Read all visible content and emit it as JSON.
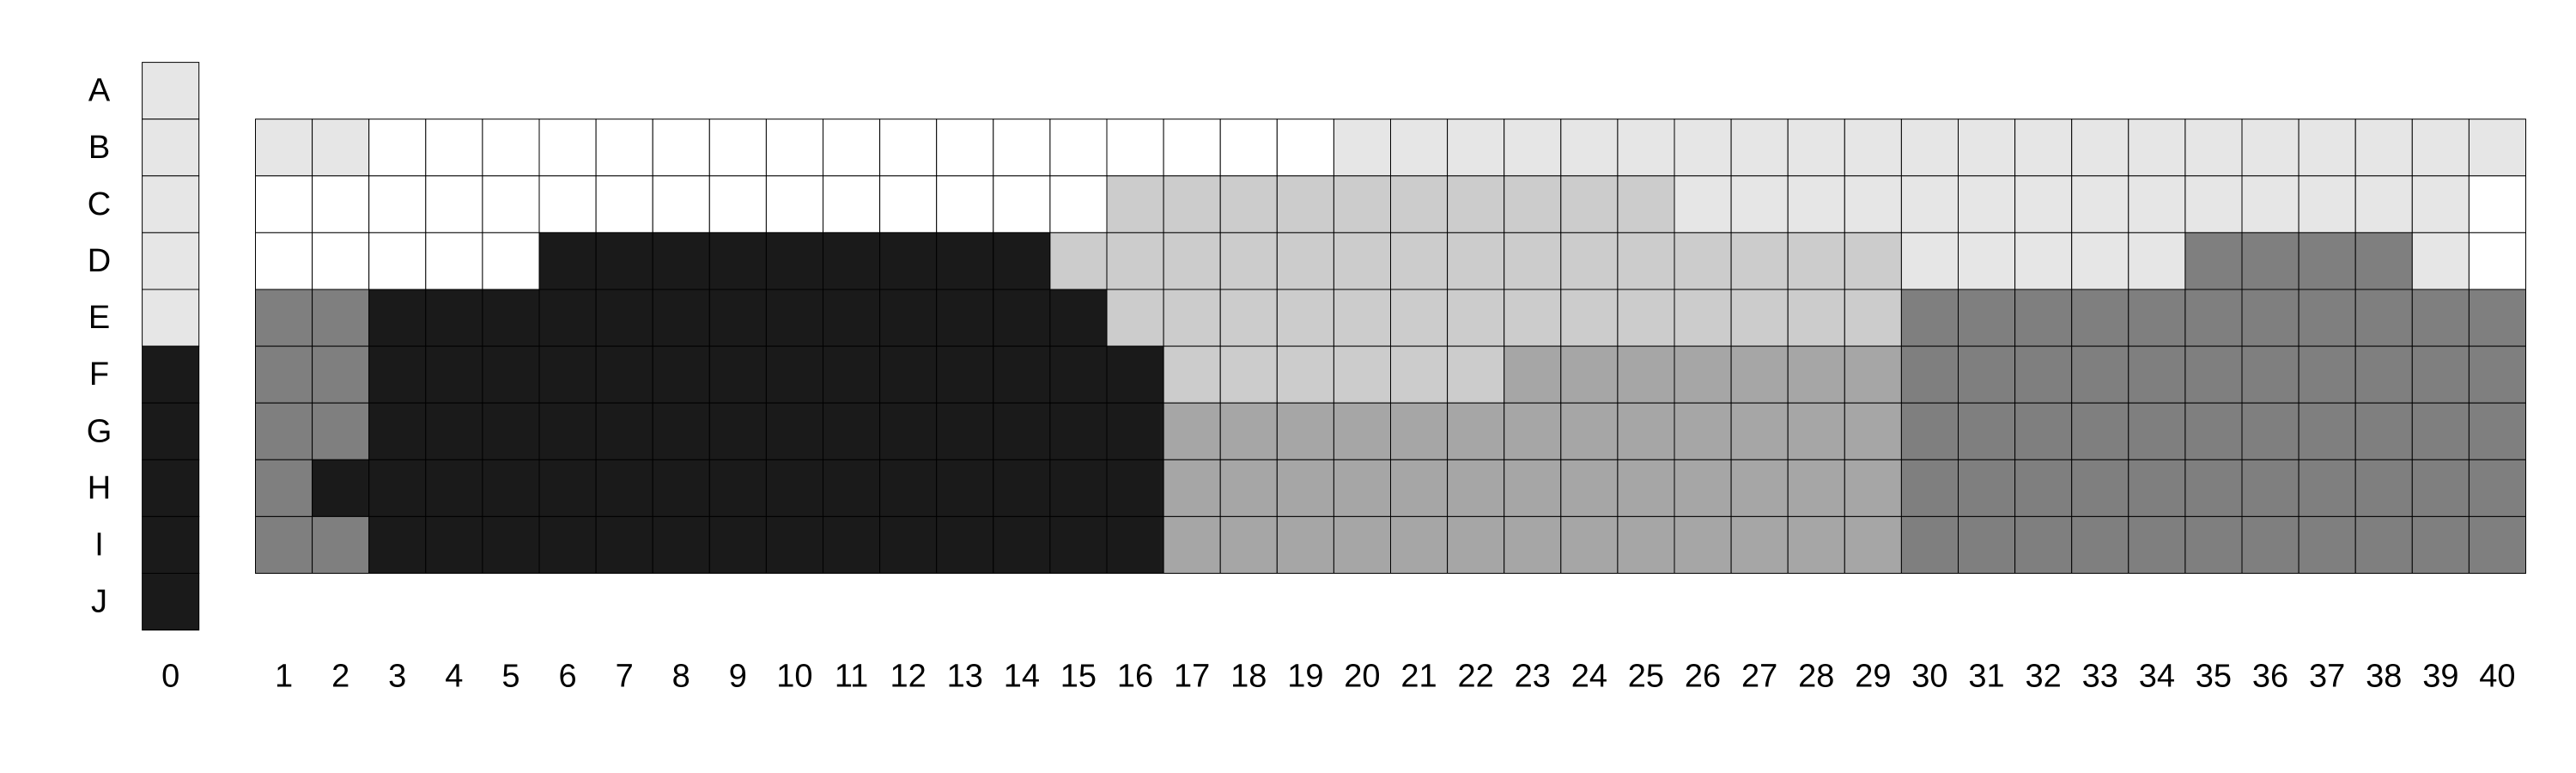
{
  "chart_data": {
    "type": "heatmap",
    "title": "",
    "xlabel": "",
    "ylabel": "",
    "rows": [
      "A",
      "B",
      "C",
      "D",
      "E",
      "F",
      "G",
      "H",
      "I",
      "J"
    ],
    "columns": [
      "0",
      "1",
      "2",
      "3",
      "4",
      "5",
      "6",
      "7",
      "8",
      "9",
      "10",
      "11",
      "12",
      "13",
      "14",
      "15",
      "16",
      "17",
      "18",
      "19",
      "20",
      "21",
      "22",
      "23",
      "24",
      "25",
      "26",
      "27",
      "28",
      "29",
      "30",
      "31",
      "32",
      "33",
      "34",
      "35",
      "36",
      "37",
      "38",
      "39",
      "40"
    ],
    "column0_values": [
      1,
      1,
      1,
      1,
      1,
      5,
      5,
      5,
      5,
      5
    ],
    "grid_rows": [
      "B",
      "C",
      "D",
      "E",
      "F",
      "G",
      "H",
      "I"
    ],
    "grid_values": [
      [
        1,
        1,
        0,
        0,
        0,
        0,
        0,
        0,
        0,
        0,
        0,
        0,
        0,
        0,
        0,
        0,
        0,
        0,
        0,
        1,
        1,
        1,
        1,
        1,
        1,
        1,
        1,
        1,
        1,
        1,
        1,
        1,
        1,
        1,
        1,
        1,
        1,
        1,
        1,
        1
      ],
      [
        0,
        0,
        0,
        0,
        0,
        0,
        0,
        0,
        0,
        0,
        0,
        0,
        0,
        0,
        0,
        2,
        2,
        2,
        2,
        2,
        2,
        2,
        2,
        2,
        2,
        1,
        1,
        1,
        1,
        1,
        1,
        1,
        1,
        1,
        1,
        1,
        1,
        1,
        1,
        0
      ],
      [
        0,
        0,
        0,
        0,
        0,
        5,
        5,
        5,
        5,
        5,
        5,
        5,
        5,
        5,
        2,
        2,
        2,
        2,
        2,
        2,
        2,
        2,
        2,
        2,
        2,
        2,
        2,
        2,
        2,
        1,
        1,
        1,
        1,
        1,
        4,
        4,
        4,
        4,
        1,
        0
      ],
      [
        4,
        4,
        5,
        5,
        5,
        5,
        5,
        5,
        5,
        5,
        5,
        5,
        5,
        5,
        5,
        2,
        2,
        2,
        2,
        2,
        2,
        2,
        2,
        2,
        2,
        2,
        2,
        2,
        2,
        4,
        4,
        4,
        4,
        4,
        4,
        4,
        4,
        4,
        4,
        4
      ],
      [
        4,
        4,
        5,
        5,
        5,
        5,
        5,
        5,
        5,
        5,
        5,
        5,
        5,
        5,
        5,
        5,
        2,
        2,
        2,
        2,
        2,
        2,
        3,
        3,
        3,
        3,
        3,
        3,
        3,
        4,
        4,
        4,
        4,
        4,
        4,
        4,
        4,
        4,
        4,
        4
      ],
      [
        4,
        4,
        5,
        5,
        5,
        5,
        5,
        5,
        5,
        5,
        5,
        5,
        5,
        5,
        5,
        5,
        3,
        3,
        3,
        3,
        3,
        3,
        3,
        3,
        3,
        3,
        3,
        3,
        3,
        4,
        4,
        4,
        4,
        4,
        4,
        4,
        4,
        4,
        4,
        4
      ],
      [
        4,
        5,
        5,
        5,
        5,
        5,
        5,
        5,
        5,
        5,
        5,
        5,
        5,
        5,
        5,
        5,
        3,
        3,
        3,
        3,
        3,
        3,
        3,
        3,
        3,
        3,
        3,
        3,
        3,
        4,
        4,
        4,
        4,
        4,
        4,
        4,
        4,
        4,
        4,
        4
      ],
      [
        4,
        4,
        5,
        5,
        5,
        5,
        5,
        5,
        5,
        5,
        5,
        5,
        5,
        5,
        5,
        5,
        3,
        3,
        3,
        3,
        3,
        3,
        3,
        3,
        3,
        3,
        3,
        3,
        3,
        4,
        4,
        4,
        4,
        4,
        4,
        4,
        4,
        4,
        4,
        4
      ]
    ],
    "color_scale": [
      "#ffffff",
      "#e6e6e6",
      "#cccccc",
      "#a6a6a6",
      "#7f7f7f",
      "#1a1a1a"
    ],
    "legend": "none"
  }
}
